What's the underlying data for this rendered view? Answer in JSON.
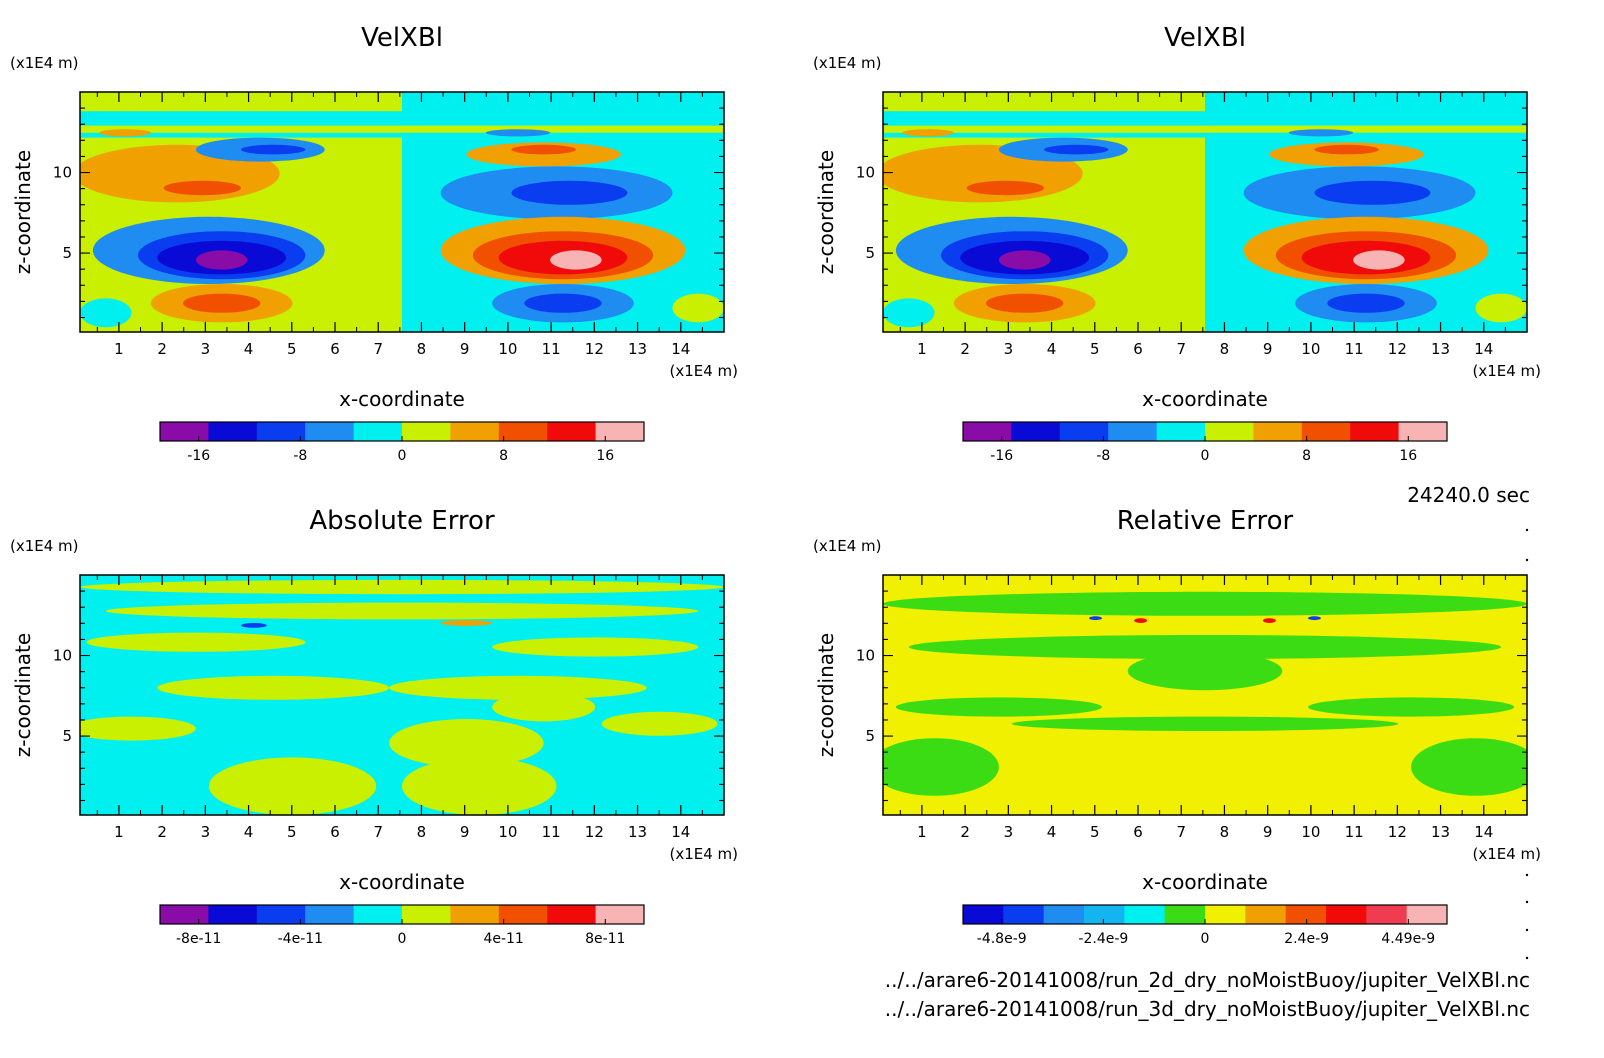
{
  "footer": {
    "time": "24240.0 sec",
    "files": [
      "../../arare6-20141008/run_2d_dry_noMoistBuoy/jupiter_VelXBl.nc",
      "../../arare6-20141008/run_3d_dry_noMoistBuoy/jupiter_VelXBl.nc"
    ]
  },
  "chart_data": [
    {
      "type": "heatmap",
      "title": "VelXBl",
      "xlabel": "x-coordinate",
      "ylabel": "z-coordinate",
      "xunit": "(x1E4 m)",
      "yunit": "(x1E4 m)",
      "xlim": [
        0.1,
        15.0
      ],
      "ylim": [
        0.1,
        15.0
      ],
      "xticks": [
        "1",
        "2",
        "3",
        "4",
        "5",
        "6",
        "7",
        "8",
        "9",
        "10",
        "11",
        "12",
        "13",
        "14"
      ],
      "yticks": [
        "5",
        "10"
      ],
      "pattern": "velocity",
      "colorbar": {
        "colors": [
          "#8a0ca8",
          "#0a0ad6",
          "#0a3cf0",
          "#1e8cf0",
          "#00f0f0",
          "#c8f000",
          "#f0a000",
          "#f05000",
          "#f00a0a",
          "#f8b4b4"
        ],
        "tick_labels": [
          "-16",
          "-8",
          "0",
          "8",
          "16"
        ]
      }
    },
    {
      "type": "heatmap",
      "title": "VelXBl",
      "xlabel": "x-coordinate",
      "ylabel": "z-coordinate",
      "xunit": "(x1E4 m)",
      "yunit": "(x1E4 m)",
      "xlim": [
        0.1,
        15.0
      ],
      "ylim": [
        0.1,
        15.0
      ],
      "xticks": [
        "1",
        "2",
        "3",
        "4",
        "5",
        "6",
        "7",
        "8",
        "9",
        "10",
        "11",
        "12",
        "13",
        "14"
      ],
      "yticks": [
        "5",
        "10"
      ],
      "pattern": "velocity",
      "colorbar": {
        "colors": [
          "#8a0ca8",
          "#0a0ad6",
          "#0a3cf0",
          "#1e8cf0",
          "#00f0f0",
          "#c8f000",
          "#f0a000",
          "#f05000",
          "#f00a0a",
          "#f8b4b4"
        ],
        "tick_labels": [
          "-16",
          "-8",
          "0",
          "8",
          "16"
        ]
      }
    },
    {
      "type": "heatmap",
      "title": "Absolute Error",
      "xlabel": "x-coordinate",
      "ylabel": "z-coordinate",
      "xunit": "(x1E4 m)",
      "yunit": "(x1E4 m)",
      "xlim": [
        0.1,
        15.0
      ],
      "ylim": [
        0.1,
        15.0
      ],
      "xticks": [
        "1",
        "2",
        "3",
        "4",
        "5",
        "6",
        "7",
        "8",
        "9",
        "10",
        "11",
        "12",
        "13",
        "14"
      ],
      "yticks": [
        "5",
        "10"
      ],
      "pattern": "abs-error",
      "colorbar": {
        "colors": [
          "#8a0ca8",
          "#0a0ad6",
          "#0a3cf0",
          "#1e8cf0",
          "#00f0f0",
          "#c8f000",
          "#f0a000",
          "#f05000",
          "#f00a0a",
          "#f8b4b4"
        ],
        "tick_labels": [
          "-8e-11",
          "-4e-11",
          "0",
          "4e-11",
          "8e-11"
        ]
      }
    },
    {
      "type": "heatmap",
      "title": "Relative Error",
      "xlabel": "x-coordinate",
      "ylabel": "z-coordinate",
      "xunit": "(x1E4 m)",
      "yunit": "(x1E4 m)",
      "xlim": [
        0.1,
        15.0
      ],
      "ylim": [
        0.1,
        15.0
      ],
      "xticks": [
        "1",
        "2",
        "3",
        "4",
        "5",
        "6",
        "7",
        "8",
        "9",
        "10",
        "11",
        "12",
        "13",
        "14"
      ],
      "yticks": [
        "5",
        "10"
      ],
      "pattern": "rel-error",
      "colorbar": {
        "colors": [
          "#0a0ad6",
          "#0a3cf0",
          "#1e8cf0",
          "#14b4f0",
          "#00f0f0",
          "#3cdc14",
          "#f0f000",
          "#f0a000",
          "#f05000",
          "#f00a0a",
          "#f03c50",
          "#f8b4b4"
        ],
        "tick_labels": [
          "-4.8e-9",
          "-2.4e-9",
          "0",
          "2.4e-9",
          "4.49e-9"
        ]
      }
    }
  ]
}
